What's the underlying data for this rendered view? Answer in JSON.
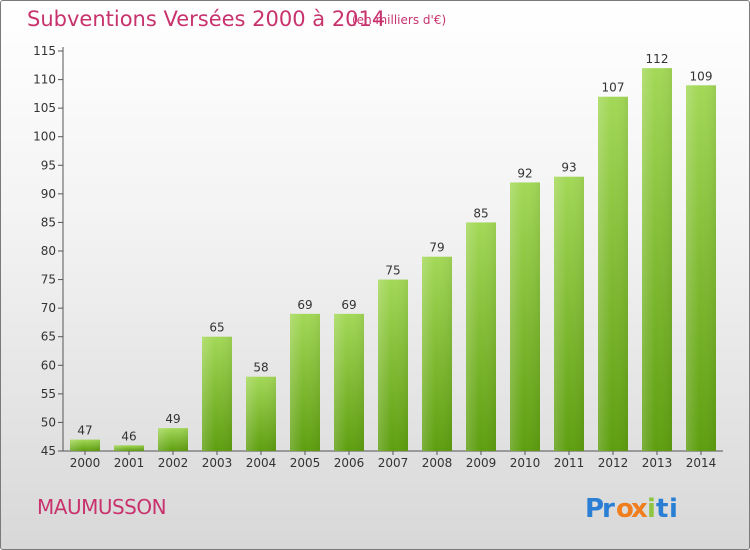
{
  "title": "Subventions Versées 2000 à 2014",
  "subtitle": "(en milliers d'€)",
  "commune": "MAUMUSSON",
  "logo": {
    "text": "Proxiti",
    "letters": [
      "P",
      "r",
      "o",
      "x",
      "i",
      "t",
      "i"
    ],
    "colors": [
      "#2a7fd4",
      "#2a7fd4",
      "#f07e1e",
      "#f07e1e",
      "#8ec641",
      "#2a7fd4",
      "#2a7fd4"
    ]
  },
  "colors": {
    "accent": "#c8336e",
    "bar_top": "#9dd24f",
    "bar_bottom": "#5e9e10",
    "label": "#333333"
  },
  "chart_data": {
    "type": "bar",
    "categories": [
      "2000",
      "2001",
      "2002",
      "2003",
      "2004",
      "2005",
      "2006",
      "2007",
      "2008",
      "2009",
      "2010",
      "2011",
      "2012",
      "2013",
      "2014"
    ],
    "values": [
      47,
      46,
      49,
      65,
      58,
      69,
      69,
      75,
      79,
      85,
      92,
      93,
      107,
      112,
      109
    ],
    "ylim": [
      45,
      115
    ],
    "yticks": [
      45,
      50,
      55,
      60,
      65,
      70,
      75,
      80,
      85,
      90,
      95,
      100,
      105,
      110,
      115
    ],
    "grid": false
  }
}
